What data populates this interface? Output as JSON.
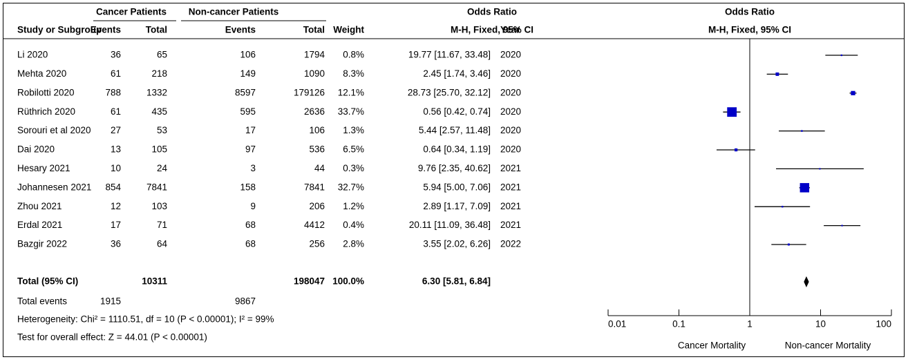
{
  "chart_data": {
    "type": "forest",
    "group_headers": [
      "Cancer Patients",
      "Non-cancer Patients",
      "Odds Ratio"
    ],
    "columns": [
      "Study or Subgroup",
      "Events",
      "Total",
      "Events",
      "Total",
      "Weight",
      "M-H, Fixed, 95% CI",
      "Year"
    ],
    "plot_title": "Odds Ratio",
    "plot_subtitle": "M-H, Fixed, 95% CI",
    "color": "#0000c8",
    "studies": [
      {
        "name": "Li 2020",
        "cancer_events": 36,
        "cancer_total": 65,
        "noncancer_events": 106,
        "noncancer_total": 1794,
        "weight": 0.8,
        "weight_label": "0.8%",
        "ci_label": "19.77 [11.67, 33.48]",
        "or": 19.77,
        "lo": 11.67,
        "hi": 33.48,
        "year": 2020
      },
      {
        "name": "Mehta 2020",
        "cancer_events": 61,
        "cancer_total": 218,
        "noncancer_events": 149,
        "noncancer_total": 1090,
        "weight": 8.3,
        "weight_label": "8.3%",
        "ci_label": "2.45 [1.74, 3.46]",
        "or": 2.45,
        "lo": 1.74,
        "hi": 3.46,
        "year": 2020
      },
      {
        "name": "Robilotti 2020",
        "cancer_events": 788,
        "cancer_total": 1332,
        "noncancer_events": 8597,
        "noncancer_total": 179126,
        "weight": 12.1,
        "weight_label": "12.1%",
        "ci_label": "28.73 [25.70, 32.12]",
        "or": 28.73,
        "lo": 25.7,
        "hi": 32.12,
        "year": 2020
      },
      {
        "name": "Rüthrich 2020",
        "cancer_events": 61,
        "cancer_total": 435,
        "noncancer_events": 595,
        "noncancer_total": 2636,
        "weight": 33.7,
        "weight_label": "33.7%",
        "ci_label": "0.56 [0.42, 0.74]",
        "or": 0.56,
        "lo": 0.42,
        "hi": 0.74,
        "year": 2020
      },
      {
        "name": "Sorouri et al 2020",
        "cancer_events": 27,
        "cancer_total": 53,
        "noncancer_events": 17,
        "noncancer_total": 106,
        "weight": 1.3,
        "weight_label": "1.3%",
        "ci_label": "5.44 [2.57, 11.48]",
        "or": 5.44,
        "lo": 2.57,
        "hi": 11.48,
        "year": 2020
      },
      {
        "name": "Dai 2020",
        "cancer_events": 13,
        "cancer_total": 105,
        "noncancer_events": 97,
        "noncancer_total": 536,
        "weight": 6.5,
        "weight_label": "6.5%",
        "ci_label": "0.64 [0.34, 1.19]",
        "or": 0.64,
        "lo": 0.34,
        "hi": 1.19,
        "year": 2020
      },
      {
        "name": "Hesary 2021",
        "cancer_events": 10,
        "cancer_total": 24,
        "noncancer_events": 3,
        "noncancer_total": 44,
        "weight": 0.3,
        "weight_label": "0.3%",
        "ci_label": "9.76 [2.35, 40.62]",
        "or": 9.76,
        "lo": 2.35,
        "hi": 40.62,
        "year": 2021
      },
      {
        "name": "Johannesen 2021",
        "cancer_events": 854,
        "cancer_total": 7841,
        "noncancer_events": 158,
        "noncancer_total": 7841,
        "weight": 32.7,
        "weight_label": "32.7%",
        "ci_label": "5.94 [5.00, 7.06]",
        "or": 5.94,
        "lo": 5.0,
        "hi": 7.06,
        "year": 2021
      },
      {
        "name": "Zhou 2021",
        "cancer_events": 12,
        "cancer_total": 103,
        "noncancer_events": 9,
        "noncancer_total": 206,
        "weight": 1.2,
        "weight_label": "1.2%",
        "ci_label": "2.89 [1.17, 7.09]",
        "or": 2.89,
        "lo": 1.17,
        "hi": 7.09,
        "year": 2021
      },
      {
        "name": "Erdal 2021",
        "cancer_events": 17,
        "cancer_total": 71,
        "noncancer_events": 68,
        "noncancer_total": 4412,
        "weight": 0.4,
        "weight_label": "0.4%",
        "ci_label": "20.11 [11.09, 36.48]",
        "or": 20.11,
        "lo": 11.09,
        "hi": 36.48,
        "year": 2021
      },
      {
        "name": "Bazgir 2022",
        "cancer_events": 36,
        "cancer_total": 64,
        "noncancer_events": 68,
        "noncancer_total": 256,
        "weight": 2.8,
        "weight_label": "2.8%",
        "ci_label": "3.55 [2.02, 6.26]",
        "or": 3.55,
        "lo": 2.02,
        "hi": 6.26,
        "year": 2022
      }
    ],
    "total": {
      "name": "Total (95% CI)",
      "cancer_total": 10311,
      "noncancer_total": 198047,
      "weight_label": "100.0%",
      "ci_label": "6.30 [5.81, 6.84]",
      "or": 6.3,
      "lo": 5.81,
      "hi": 6.84
    },
    "total_events": {
      "name": "Total events",
      "cancer_events": 1915,
      "noncancer_events": 9867
    },
    "heterogeneity": "Heterogeneity: Chi² = 1110.51, df = 10 (P < 0.00001); I² = 99%",
    "overall_effect": "Test for overall effect: Z = 44.01 (P < 0.00001)",
    "log_x": true,
    "xlim": [
      0.01,
      100
    ],
    "xticks": [
      0.01,
      0.1,
      1,
      10,
      100
    ],
    "xlabel_left": "Cancer Mortality",
    "xlabel_right": "Non-cancer Mortality"
  }
}
